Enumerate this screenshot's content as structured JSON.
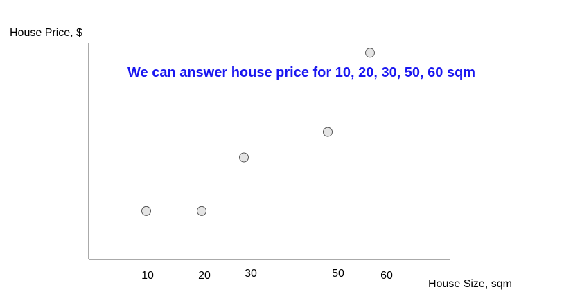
{
  "chart_data": {
    "type": "scatter",
    "title": "",
    "xlabel": "House Size, sqm",
    "ylabel": "House Price, $",
    "x_tick_labels": [
      "10",
      "20",
      "30",
      "50",
      "60"
    ],
    "points": [
      {
        "x": 10,
        "y": 1.9
      },
      {
        "x": 20,
        "y": 1.9
      },
      {
        "x": 30,
        "y": 4.0
      },
      {
        "x": 50,
        "y": 5.0
      },
      {
        "x": 60,
        "y": 8.1
      }
    ],
    "xlim": [
      0,
      75
    ],
    "ylim": [
      0,
      8
    ],
    "grid": false,
    "annotation": "We can answer house price for 10, 20, 30, 50, 60 sqm",
    "colors": {
      "annotation": "#1a17f0",
      "axis": "#555555",
      "point_fill": "#e4e4e4",
      "point_stroke": "#555555"
    }
  }
}
